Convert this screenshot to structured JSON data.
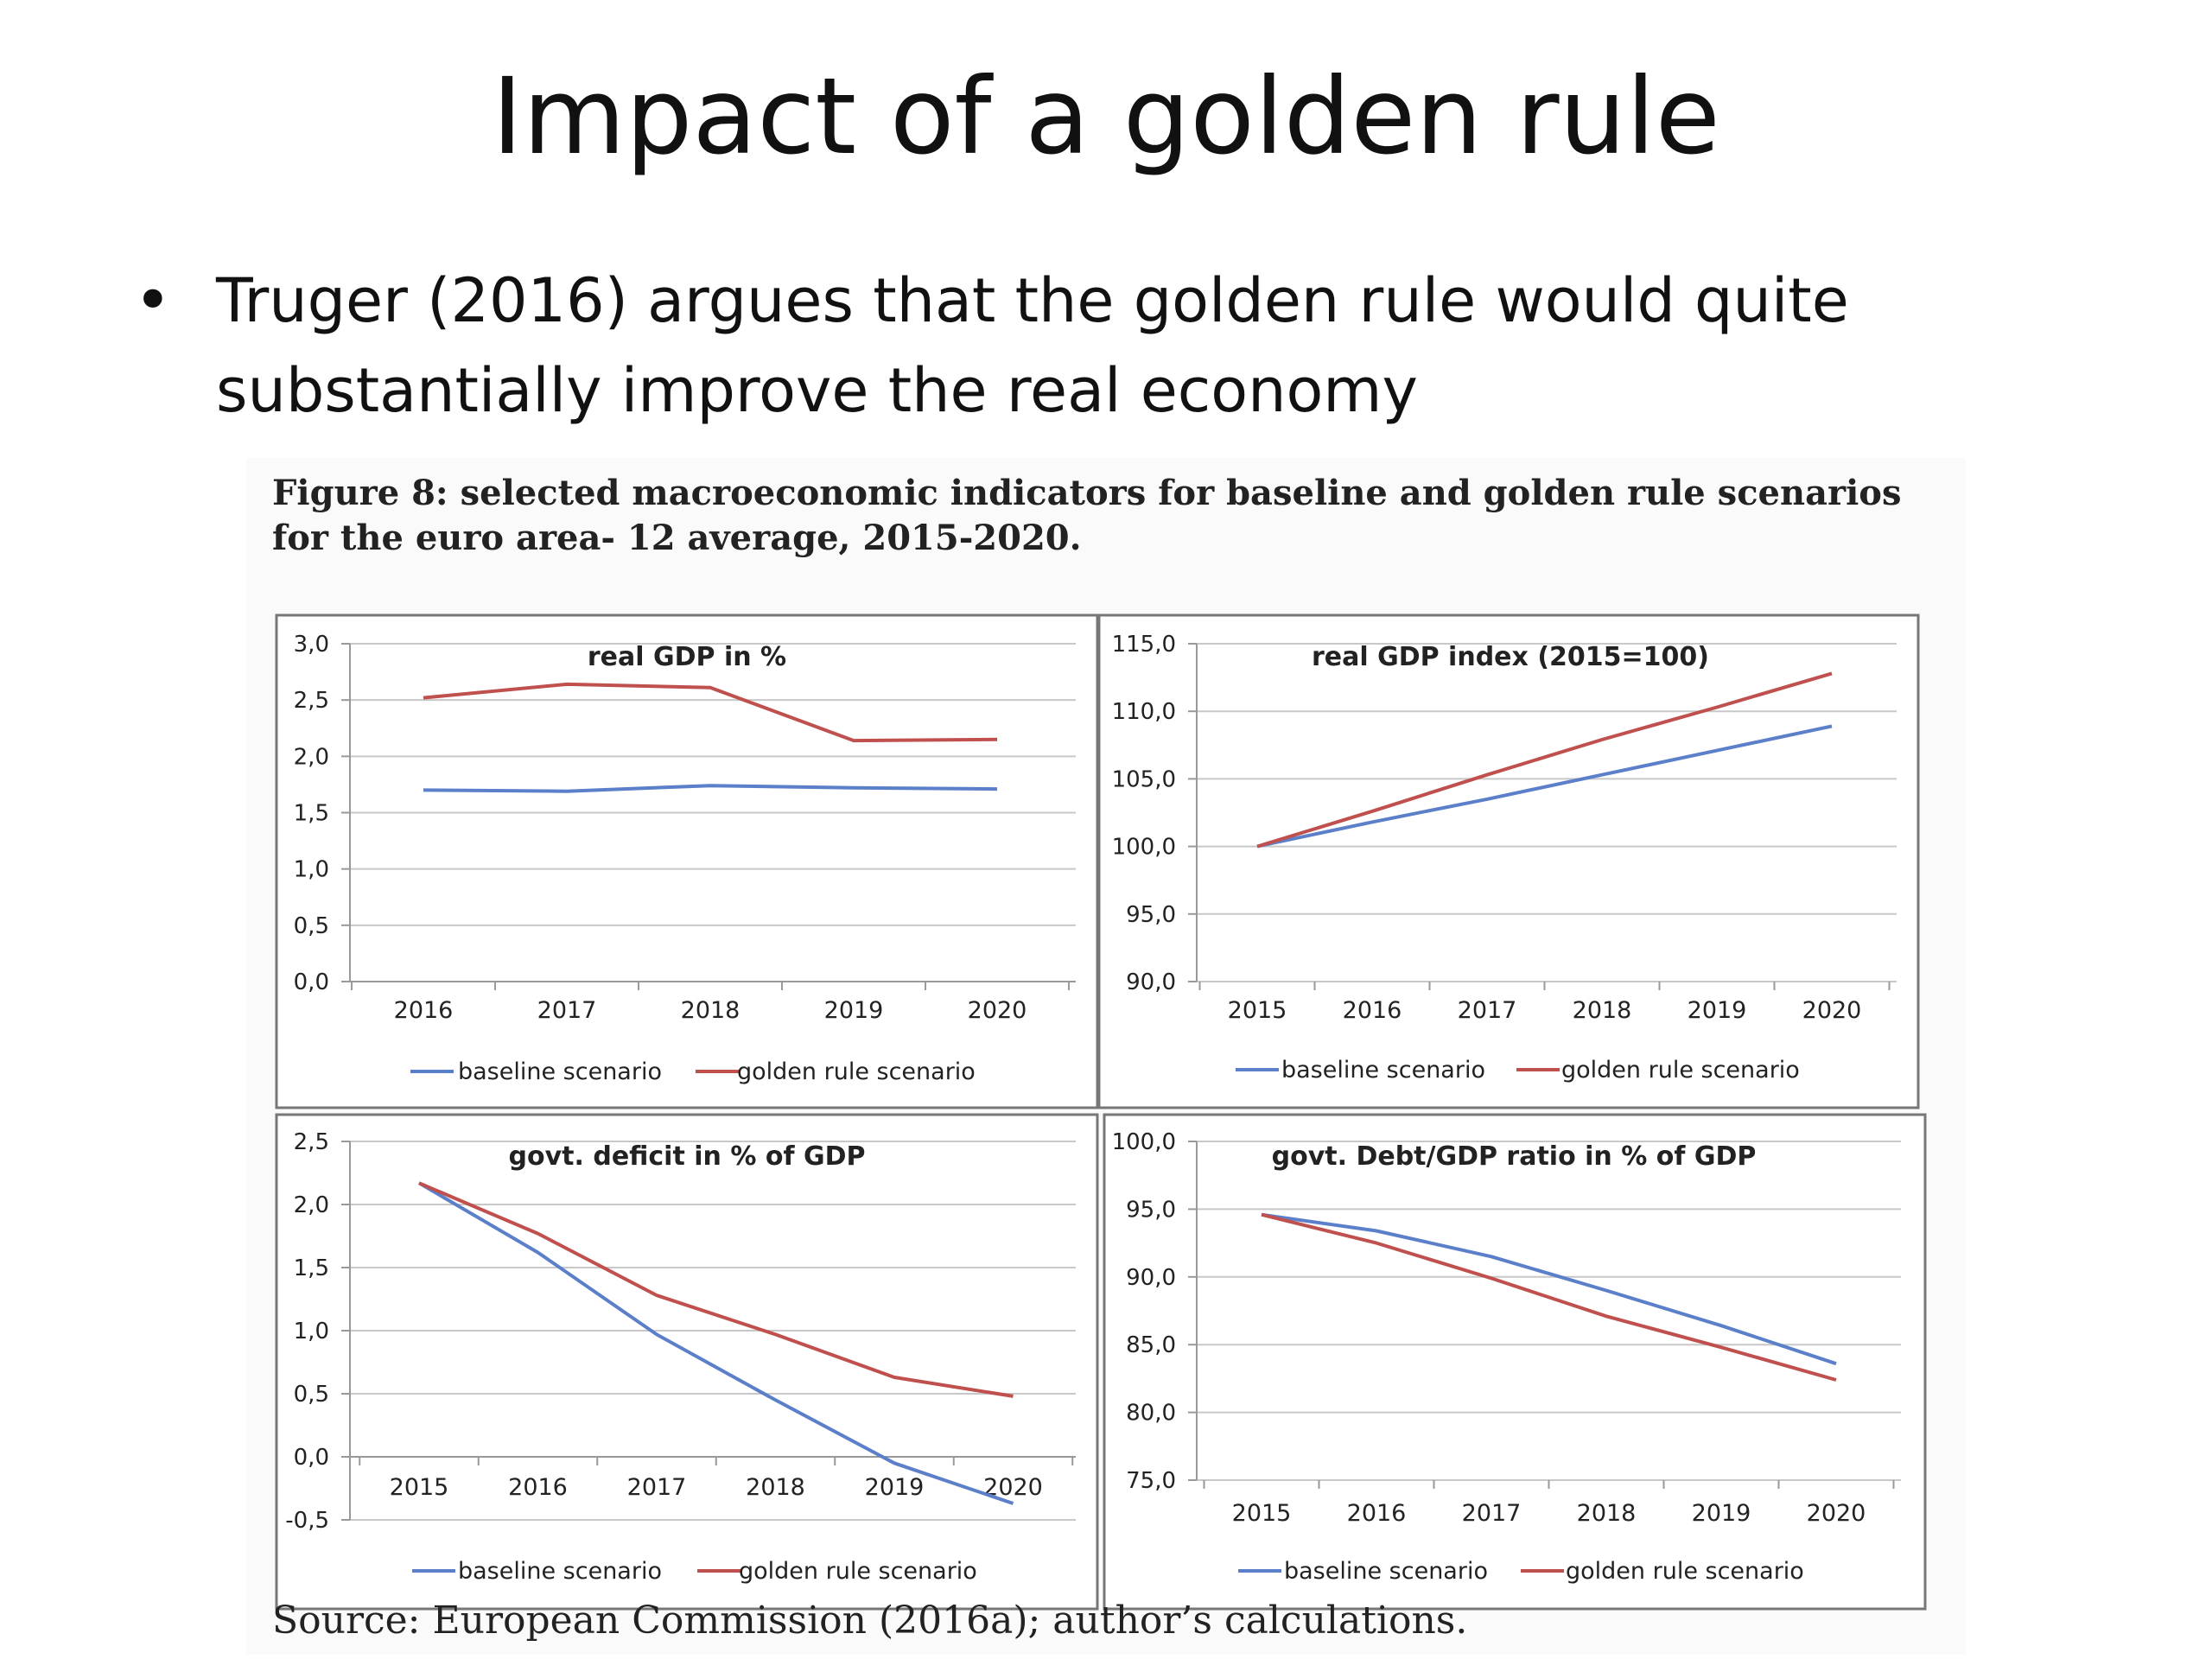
{
  "slide": {
    "title": "Impact of a golden rule",
    "bullet": "Truger (2016) argues that the golden rule would quite substantially improve the real economy"
  },
  "figure": {
    "caption": "Figure 8: selected macroeconomic indicators for baseline and golden rule scenarios for the euro area- 12 average, 2015-2020.",
    "source": "Source: European Commission (2016a); author’s calculations."
  },
  "colors": {
    "baseline": "#5b7fc9",
    "golden": "#c0504d"
  },
  "chart_data": [
    {
      "type": "line",
      "title": "real GDP in %",
      "categories": [
        "2016",
        "2017",
        "2018",
        "2019",
        "2020"
      ],
      "ylim": [
        0,
        3
      ],
      "yticks": [
        "0,0",
        "0,5",
        "1,0",
        "1,5",
        "2,0",
        "2,5",
        "3,0"
      ],
      "series": [
        {
          "name": "baseline scenario",
          "values": [
            1.7,
            1.69,
            1.74,
            1.72,
            1.71
          ]
        },
        {
          "name": "golden rule scenario",
          "values": [
            2.52,
            2.64,
            2.61,
            2.14,
            2.15
          ]
        }
      ],
      "legend": "bottom",
      "grid": true
    },
    {
      "type": "line",
      "title": "real GDP index (2015=100)",
      "categories": [
        "2015",
        "2016",
        "2017",
        "2018",
        "2019",
        "2020"
      ],
      "ylim": [
        90,
        115
      ],
      "yticks": [
        "90,0",
        "95,0",
        "100,0",
        "105,0",
        "110,0",
        "115,0"
      ],
      "series": [
        {
          "name": "baseline scenario",
          "values": [
            100.0,
            101.8,
            103.5,
            105.3,
            107.1,
            108.9
          ]
        },
        {
          "name": "golden rule scenario",
          "values": [
            100.0,
            102.6,
            105.3,
            107.9,
            110.3,
            112.8
          ]
        }
      ],
      "legend": "bottom",
      "grid": true
    },
    {
      "type": "line",
      "title": "govt. deficit in  % of GDP",
      "categories": [
        "2015",
        "2016",
        "2017",
        "2018",
        "2019",
        "2020"
      ],
      "ylim": [
        -0.5,
        2.5
      ],
      "yticks": [
        "-0,5",
        "0,0",
        "0,5",
        "1,0",
        "1,5",
        "2,0",
        "2,5"
      ],
      "series": [
        {
          "name": "baseline scenario",
          "values": [
            2.17,
            1.62,
            0.97,
            0.45,
            -0.05,
            -0.37
          ]
        },
        {
          "name": "golden rule scenario",
          "values": [
            2.17,
            1.77,
            1.28,
            0.97,
            0.63,
            0.48
          ]
        }
      ],
      "legend": "bottom",
      "grid": true
    },
    {
      "type": "line",
      "title": "govt. Debt/GDP ratio in % of GDP",
      "categories": [
        "2015",
        "2016",
        "2017",
        "2018",
        "2019",
        "2020"
      ],
      "ylim": [
        75,
        100
      ],
      "yticks": [
        "75,0",
        "80,0",
        "85,0",
        "90,0",
        "95,0",
        "100,0"
      ],
      "series": [
        {
          "name": "baseline scenario",
          "values": [
            94.6,
            93.4,
            91.5,
            89.0,
            86.4,
            83.6
          ]
        },
        {
          "name": "golden rule scenario",
          "values": [
            94.6,
            92.5,
            89.9,
            87.1,
            84.8,
            82.4
          ]
        }
      ],
      "legend": "bottom",
      "grid": true
    }
  ]
}
